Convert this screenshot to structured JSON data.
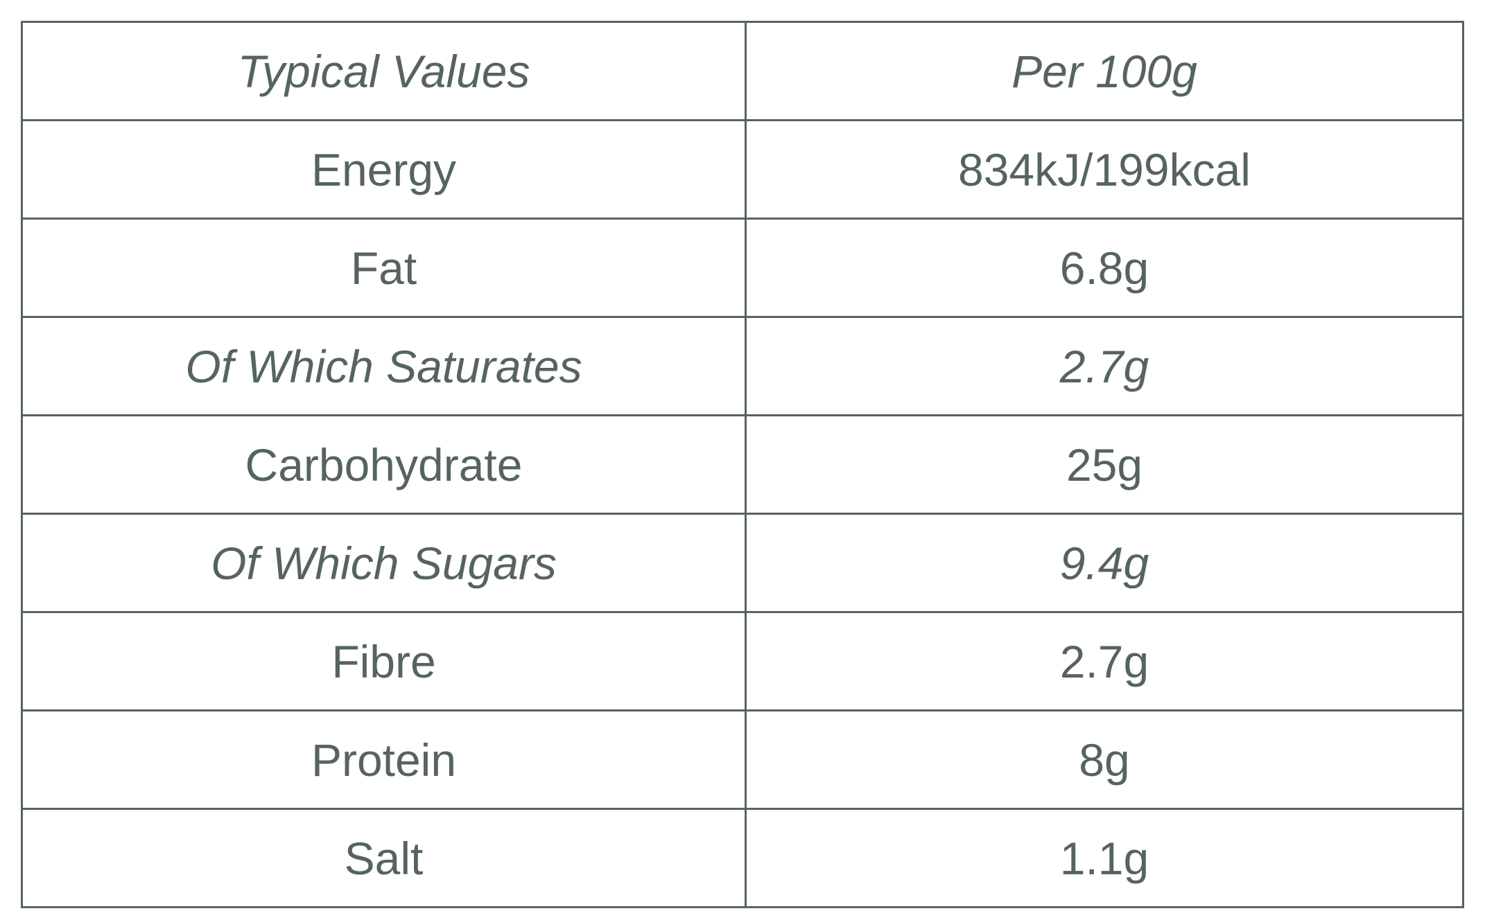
{
  "table": {
    "header": [
      "Typical Values",
      "Per 100g"
    ],
    "rows": [
      [
        "Energy",
        "834kJ/199kcal"
      ],
      [
        "Fat",
        "6.8g"
      ],
      [
        "Of Which Saturates",
        "2.7g"
      ],
      [
        "Carbohydrate",
        "25g"
      ],
      [
        "Of Which Sugars",
        "9.4g"
      ],
      [
        "Fibre",
        "2.7g"
      ],
      [
        "Protein",
        "8g"
      ],
      [
        "Salt",
        "1.1g"
      ]
    ]
  }
}
